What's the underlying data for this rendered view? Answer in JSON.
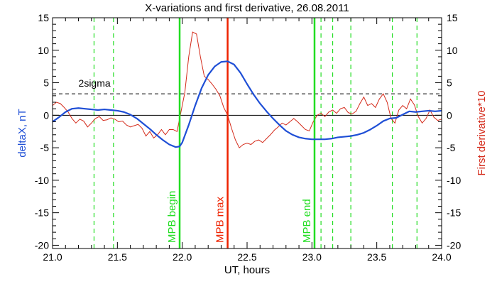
{
  "chart_data": {
    "type": "line",
    "title": "X-variations and first derivative, 26.08.2011",
    "xlabel": "UT, hours",
    "ylabel_left": "deltaX, nT",
    "ylabel_right": "First derivative*10",
    "xlim": [
      21.0,
      24.0
    ],
    "ylim": [
      -20.5,
      15
    ],
    "x_ticks": [
      "21.0",
      "21.5",
      "22.0",
      "22.5",
      "23.0",
      "23.5",
      "24.0"
    ],
    "x_tick_values": [
      21.0,
      21.5,
      22.0,
      22.5,
      23.0,
      23.5,
      24.0
    ],
    "y_ticks": [
      "15",
      "10",
      "5",
      "0",
      "-5",
      "-10",
      "-15",
      "-20"
    ],
    "y_tick_values": [
      15,
      10,
      5,
      0,
      -5,
      -10,
      -15,
      -20
    ],
    "two_sigma": {
      "label": "2sigma",
      "value": 3.3
    },
    "zero_line": 0,
    "colors": {
      "deltaX": "#1f4fd6",
      "derivative": "#d42a1a",
      "green": "#22dd22",
      "red_line": "#ee2200",
      "axis": "#000000"
    },
    "dashed_green_lines": [
      21.32,
      21.47,
      23.07,
      23.16,
      23.3,
      23.62,
      23.81
    ],
    "solid_lines": [
      {
        "x": 21.98,
        "label": "MPB begin",
        "color": "#22dd22"
      },
      {
        "x": 22.35,
        "label": "MPB max",
        "color": "#ee2200"
      },
      {
        "x": 23.02,
        "label": "MPB end",
        "color": "#22dd22"
      }
    ],
    "series": [
      {
        "name": "deltaX, nT",
        "color": "#1f4fd6",
        "x": [
          21.0,
          21.05,
          21.1,
          21.15,
          21.2,
          21.25,
          21.3,
          21.35,
          21.4,
          21.45,
          21.5,
          21.55,
          21.6,
          21.65,
          21.7,
          21.75,
          21.8,
          21.85,
          21.9,
          21.95,
          21.98,
          22.0,
          22.05,
          22.1,
          22.15,
          22.2,
          22.25,
          22.3,
          22.35,
          22.4,
          22.45,
          22.5,
          22.55,
          22.6,
          22.65,
          22.7,
          22.75,
          22.8,
          22.85,
          22.9,
          22.95,
          23.0,
          23.05,
          23.1,
          23.15,
          23.2,
          23.25,
          23.3,
          23.35,
          23.4,
          23.45,
          23.5,
          23.55,
          23.6,
          23.65,
          23.7,
          23.75,
          23.8,
          23.85,
          23.9,
          23.95,
          24.0
        ],
        "y": [
          -1.0,
          -0.3,
          0.5,
          1.0,
          1.1,
          1.0,
          0.9,
          0.8,
          0.9,
          0.8,
          0.7,
          0.5,
          0.1,
          -0.5,
          -1.3,
          -2.1,
          -3.0,
          -3.8,
          -4.5,
          -4.9,
          -4.8,
          -4.2,
          -1.5,
          1.5,
          4.2,
          6.2,
          7.5,
          8.2,
          8.3,
          7.8,
          6.5,
          4.8,
          3.2,
          1.8,
          0.6,
          -0.5,
          -1.5,
          -2.4,
          -3.0,
          -3.4,
          -3.6,
          -3.7,
          -3.7,
          -3.7,
          -3.6,
          -3.4,
          -3.3,
          -3.2,
          -3.0,
          -2.7,
          -2.2,
          -1.6,
          -0.9,
          -0.5,
          -0.4,
          0.1,
          0.6,
          0.5,
          0.6,
          0.7,
          0.6,
          0.7
        ]
      },
      {
        "name": "First derivative*10",
        "color": "#d42a1a",
        "x": [
          21.0,
          21.03,
          21.06,
          21.09,
          21.12,
          21.15,
          21.18,
          21.21,
          21.24,
          21.27,
          21.3,
          21.33,
          21.36,
          21.39,
          21.42,
          21.45,
          21.48,
          21.51,
          21.54,
          21.57,
          21.6,
          21.63,
          21.66,
          21.69,
          21.72,
          21.75,
          21.78,
          21.81,
          21.84,
          21.87,
          21.9,
          21.93,
          21.96,
          21.99,
          22.02,
          22.05,
          22.08,
          22.11,
          22.14,
          22.17,
          22.2,
          22.23,
          22.26,
          22.29,
          22.32,
          22.35,
          22.38,
          22.41,
          22.44,
          22.47,
          22.5,
          22.53,
          22.56,
          22.59,
          22.62,
          22.65,
          22.68,
          22.71,
          22.74,
          22.77,
          22.8,
          22.83,
          22.86,
          22.89,
          22.92,
          22.95,
          22.98,
          23.01,
          23.04,
          23.07,
          23.1,
          23.13,
          23.16,
          23.19,
          23.22,
          23.25,
          23.28,
          23.31,
          23.34,
          23.37,
          23.4,
          23.43,
          23.46,
          23.49,
          23.52,
          23.55,
          23.58,
          23.61,
          23.64,
          23.67,
          23.7,
          23.73,
          23.76,
          23.79,
          23.82,
          23.85,
          23.88,
          23.91,
          23.94,
          23.97,
          24.0
        ],
        "y": [
          1.5,
          2.0,
          1.8,
          1.2,
          0.5,
          -0.5,
          -1.2,
          -0.6,
          -0.9,
          -1.8,
          -1.2,
          -0.5,
          -0.2,
          -0.8,
          -0.7,
          -0.4,
          -0.6,
          -1.0,
          -0.9,
          -1.5,
          -1.8,
          -1.6,
          -1.4,
          -2.0,
          -3.2,
          -2.5,
          -3.5,
          -3.0,
          -2.2,
          -3.0,
          -2.2,
          -2.2,
          -2.5,
          0.5,
          3.5,
          9.0,
          12.8,
          12.5,
          9.0,
          6.0,
          5.5,
          4.8,
          4.0,
          3.0,
          1.2,
          0.0,
          -2.0,
          -3.8,
          -5.0,
          -4.5,
          -4.3,
          -4.5,
          -4.0,
          -3.8,
          -4.2,
          -3.6,
          -3.0,
          -2.3,
          -1.8,
          -1.2,
          -1.5,
          -1.0,
          -0.5,
          -1.0,
          -1.6,
          -2.2,
          -2.4,
          -1.0,
          0.0,
          0.3,
          -0.2,
          0.5,
          0.8,
          0.3,
          1.0,
          1.2,
          0.4,
          0.2,
          0.6,
          1.8,
          2.8,
          1.5,
          1.8,
          1.2,
          2.5,
          3.3,
          2.0,
          -0.5,
          -1.2,
          0.8,
          1.5,
          1.0,
          2.5,
          1.6,
          -0.2,
          -1.2,
          -0.5,
          0.8,
          -0.3,
          -0.8,
          -0.6
        ]
      }
    ]
  }
}
